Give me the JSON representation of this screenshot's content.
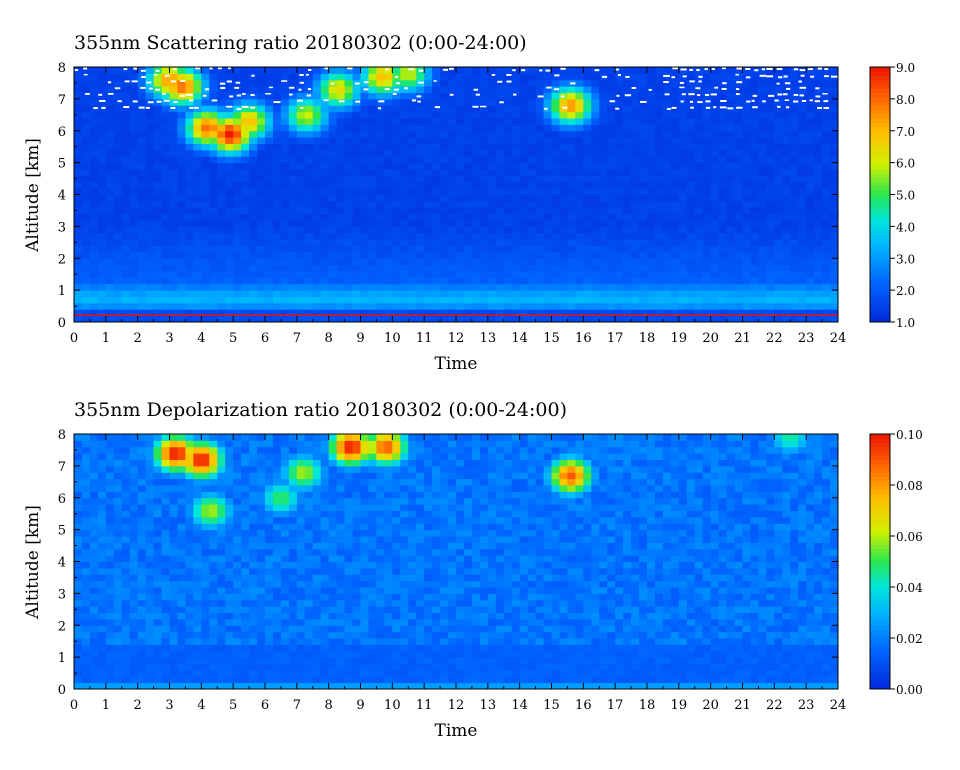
{
  "chart_data": [
    {
      "type": "heatmap",
      "title": "355nm Scattering ratio  20180302 (0:00-24:00)",
      "xlabel": "Time",
      "ylabel": "Altitude [km]",
      "x_ticks": [
        "0",
        "1",
        "2",
        "3",
        "4",
        "5",
        "6",
        "7",
        "8",
        "9",
        "10",
        "11",
        "12",
        "13",
        "14",
        "15",
        "16",
        "17",
        "18",
        "19",
        "20",
        "21",
        "22",
        "23",
        "24"
      ],
      "y_ticks": [
        "0",
        "1",
        "2",
        "3",
        "4",
        "5",
        "6",
        "7",
        "8"
      ],
      "xlim": [
        0,
        24
      ],
      "ylim": [
        0,
        8
      ],
      "colorbar": {
        "min": 1.0,
        "max": 9.0,
        "tick_labels": [
          "1.0",
          "2.0",
          "3.0",
          "4.0",
          "5.0",
          "6.0",
          "7.0",
          "8.0",
          "9.0"
        ],
        "tick_values": [
          1.0,
          2.0,
          3.0,
          4.0,
          5.0,
          6.0,
          7.0,
          8.0,
          9.0
        ]
      },
      "features": {
        "background_value": 1.5,
        "low_aerosol_layer": {
          "alt_km": [
            0.4,
            1.1
          ],
          "value": 3.5
        },
        "surface_line": {
          "alt_km": 0.22,
          "value": 9.0
        },
        "no_data_above_km": 6.5,
        "cirrus": [
          {
            "t": 3.4,
            "alt": 7.4,
            "value": 8.0
          },
          {
            "t": 3.0,
            "alt": 7.6,
            "value": 7.5
          },
          {
            "t": 4.2,
            "alt": 6.1,
            "value": 8.0
          },
          {
            "t": 4.9,
            "alt": 5.9,
            "value": 9.0
          },
          {
            "t": 5.5,
            "alt": 6.3,
            "value": 7.0
          },
          {
            "t": 7.3,
            "alt": 6.5,
            "value": 6.0
          },
          {
            "t": 8.3,
            "alt": 7.3,
            "value": 6.5
          },
          {
            "t": 9.7,
            "alt": 7.7,
            "value": 7.0
          },
          {
            "t": 10.5,
            "alt": 7.8,
            "value": 6.0
          },
          {
            "t": 15.6,
            "alt": 6.8,
            "value": 7.5
          }
        ]
      }
    },
    {
      "type": "heatmap",
      "title": "355nm Depolarization ratio  20180302 (0:00-24:00)",
      "xlabel": "Time",
      "ylabel": "Altitude [km]",
      "x_ticks": [
        "0",
        "1",
        "2",
        "3",
        "4",
        "5",
        "6",
        "7",
        "8",
        "9",
        "10",
        "11",
        "12",
        "13",
        "14",
        "15",
        "16",
        "17",
        "18",
        "19",
        "20",
        "21",
        "22",
        "23",
        "24"
      ],
      "y_ticks": [
        "0",
        "1",
        "2",
        "3",
        "4",
        "5",
        "6",
        "7",
        "8"
      ],
      "xlim": [
        0,
        24
      ],
      "ylim": [
        0,
        8
      ],
      "colorbar": {
        "min": 0.0,
        "max": 0.1,
        "tick_labels": [
          "0.00",
          "0.02",
          "0.04",
          "0.06",
          "0.08",
          "0.10"
        ],
        "tick_values": [
          0.0,
          0.02,
          0.04,
          0.06,
          0.08,
          0.1
        ]
      },
      "features": {
        "background_value": 0.018,
        "cirrus": [
          {
            "t": 3.2,
            "alt": 7.4,
            "value": 0.1
          },
          {
            "t": 4.0,
            "alt": 7.2,
            "value": 0.1
          },
          {
            "t": 4.3,
            "alt": 5.6,
            "value": 0.06
          },
          {
            "t": 6.5,
            "alt": 6.0,
            "value": 0.05
          },
          {
            "t": 7.2,
            "alt": 6.8,
            "value": 0.06
          },
          {
            "t": 8.7,
            "alt": 7.6,
            "value": 0.1
          },
          {
            "t": 9.8,
            "alt": 7.6,
            "value": 0.09
          },
          {
            "t": 15.6,
            "alt": 6.7,
            "value": 0.09
          },
          {
            "t": 22.5,
            "alt": 7.9,
            "value": 0.045
          }
        ]
      }
    }
  ]
}
